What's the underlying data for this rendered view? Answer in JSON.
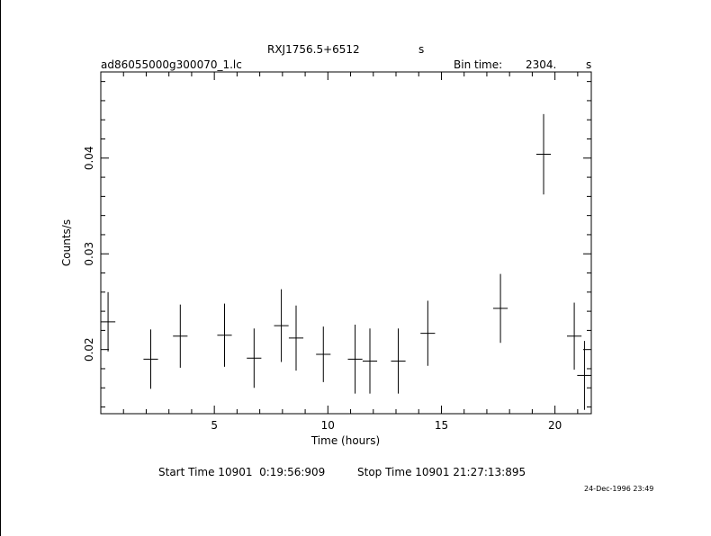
{
  "header": {
    "title": "RXJ1756.5+6512",
    "title_unit": "s",
    "filename": "ad86055000g300070_1.lc",
    "bin_label": "Bin time:",
    "bin_value": "2304.",
    "bin_unit": "s"
  },
  "footer": {
    "start_label": "Start Time 10901  0:19:56:909",
    "stop_label": "Stop Time 10901 21:27:13:895",
    "timestamp": "24-Dec-1996 23:49"
  },
  "chart_data": {
    "type": "scatter",
    "xlabel": "Time (hours)",
    "ylabel": "Counts/s",
    "xlim": [
      0,
      21.6
    ],
    "ylim": [
      0.0133,
      0.049
    ],
    "xticks": [
      5,
      10,
      15,
      20
    ],
    "yticks": [
      0.02,
      0.03,
      0.04
    ],
    "xtick_labels": [
      "5",
      "10",
      "15",
      "20"
    ],
    "ytick_labels": [
      "0.02",
      "0.03",
      "0.04"
    ],
    "grid": false,
    "points": [
      {
        "x": 0.32,
        "y": 0.0229,
        "xerr": 0.32,
        "yerr": 0.0031
      },
      {
        "x": 2.2,
        "y": 0.019,
        "xerr": 0.32,
        "yerr": 0.0031
      },
      {
        "x": 3.5,
        "y": 0.0214,
        "xerr": 0.32,
        "yerr": 0.0033
      },
      {
        "x": 5.45,
        "y": 0.0215,
        "xerr": 0.32,
        "yerr": 0.0033
      },
      {
        "x": 6.75,
        "y": 0.0191,
        "xerr": 0.32,
        "yerr": 0.0031
      },
      {
        "x": 7.95,
        "y": 0.0225,
        "xerr": 0.32,
        "yerr": 0.0038
      },
      {
        "x": 8.6,
        "y": 0.0212,
        "xerr": 0.32,
        "yerr": 0.0034
      },
      {
        "x": 9.8,
        "y": 0.0195,
        "xerr": 0.32,
        "yerr": 0.0029
      },
      {
        "x": 11.2,
        "y": 0.019,
        "xerr": 0.32,
        "yerr": 0.0036
      },
      {
        "x": 11.85,
        "y": 0.0188,
        "xerr": 0.32,
        "yerr": 0.0034
      },
      {
        "x": 13.1,
        "y": 0.0188,
        "xerr": 0.32,
        "yerr": 0.0034
      },
      {
        "x": 14.4,
        "y": 0.0217,
        "xerr": 0.32,
        "yerr": 0.0034
      },
      {
        "x": 17.6,
        "y": 0.0243,
        "xerr": 0.32,
        "yerr": 0.0036
      },
      {
        "x": 19.5,
        "y": 0.0404,
        "xerr": 0.32,
        "yerr": 0.0042
      },
      {
        "x": 20.85,
        "y": 0.0214,
        "xerr": 0.32,
        "yerr": 0.0035
      },
      {
        "x": 21.3,
        "y": 0.0173,
        "xerr": 0.32,
        "yerr": 0.0036
      }
    ]
  }
}
